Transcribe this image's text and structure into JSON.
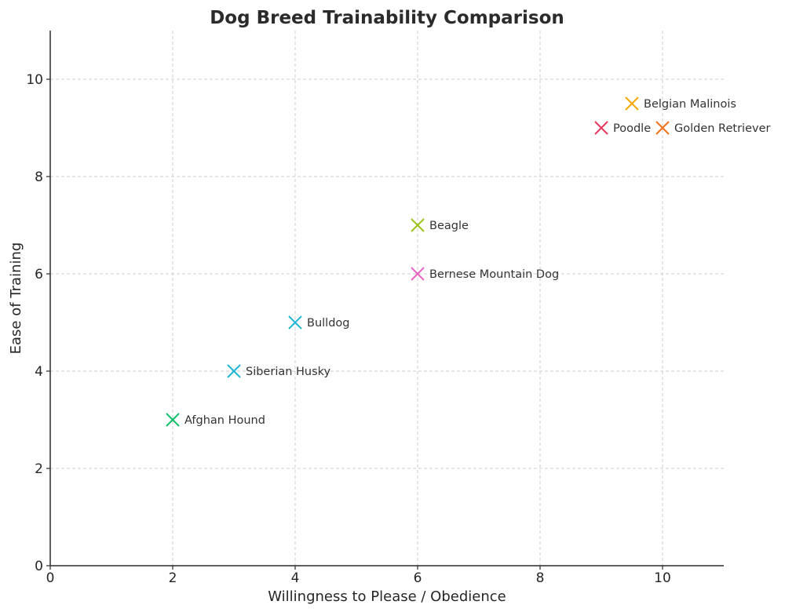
{
  "chart_data": {
    "type": "scatter",
    "title": "Dog Breed Trainability Comparison",
    "xlabel": "Willingness to Please / Obedience",
    "ylabel": "Ease of Training",
    "xlim": [
      0,
      11
    ],
    "ylim": [
      0,
      11
    ],
    "x_ticks": [
      0,
      2,
      4,
      6,
      8,
      10
    ],
    "y_ticks": [
      0,
      2,
      4,
      6,
      8,
      10
    ],
    "grid": true,
    "marker": "x",
    "points": [
      {
        "label": "Belgian Malinois",
        "x": 9.5,
        "y": 9.5,
        "color": "#f5a800"
      },
      {
        "label": "Poodle",
        "x": 9,
        "y": 9,
        "color": "#e8345a"
      },
      {
        "label": "Golden Retriever",
        "x": 10,
        "y": 9,
        "color": "#f0711c"
      },
      {
        "label": "Beagle",
        "x": 6,
        "y": 7,
        "color": "#9cc21c"
      },
      {
        "label": "Bernese Mountain Dog",
        "x": 6,
        "y": 6,
        "color": "#e865c2"
      },
      {
        "label": "Bulldog",
        "x": 4,
        "y": 5,
        "color": "#1fb5d6"
      },
      {
        "label": "Siberian Husky",
        "x": 3,
        "y": 4,
        "color": "#1fb5d6"
      },
      {
        "label": "Afghan Hound",
        "x": 2,
        "y": 3,
        "color": "#10c06a"
      }
    ]
  }
}
